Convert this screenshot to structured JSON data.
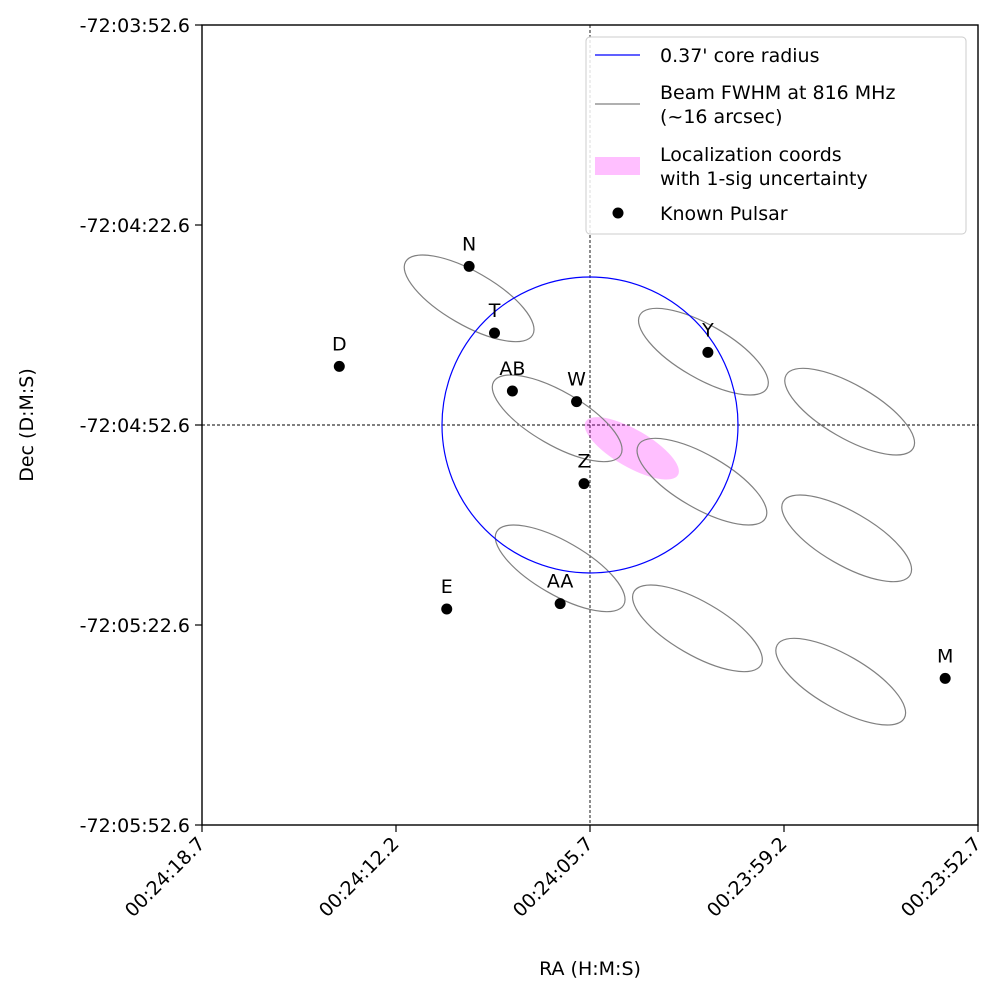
{
  "chart_data": {
    "type": "scatter",
    "xlabel": "RA (H:M:S)",
    "ylabel": "Dec (D:M:S)",
    "x_unit": "RA offset from 00:24:05.7 in seconds of time (axis inverted: RA increases to the left)",
    "y_unit": "Dec offset from -72:04:52.6 in arcseconds",
    "xlim": [
      13.0,
      -13.0
    ],
    "ylim": [
      -60,
      60
    ],
    "x_ticks": [
      {
        "value": 13.0,
        "label": "00:24:18.7"
      },
      {
        "value": 6.5,
        "label": "00:24:12.2"
      },
      {
        "value": 0.0,
        "label": "00:24:05.7"
      },
      {
        "value": -6.5,
        "label": "00:23:59.2"
      },
      {
        "value": -13.0,
        "label": "00:23:52.7"
      }
    ],
    "y_ticks": [
      {
        "value": 60,
        "label": "-72:03:52.6"
      },
      {
        "value": 30,
        "label": "-72:04:22.6"
      },
      {
        "value": 0,
        "label": "-72:04:52.6"
      },
      {
        "value": -30,
        "label": "-72:05:22.6"
      },
      {
        "value": -60,
        "label": "-72:05:52.6"
      }
    ],
    "center": {
      "x": 0,
      "y": 0
    },
    "core_circle": {
      "label": "0.37' core radius",
      "radius_arcsec": 22.2,
      "color": "#0000ff"
    },
    "beam": {
      "label": "Beam FWHM at 816 MHz\n(~16 arcsec)",
      "color": "#808080",
      "semi_major_arcsec": 11.0,
      "semi_minor_arcsec": 4.0,
      "angle_deg": 30,
      "centers": [
        {
          "x": 4.05,
          "y": 19.0
        },
        {
          "x": -3.8,
          "y": 11.0
        },
        {
          "x": -8.7,
          "y": 2.0
        },
        {
          "x": 1.1,
          "y": 1.0
        },
        {
          "x": -3.75,
          "y": -8.5
        },
        {
          "x": -8.6,
          "y": -17.0
        },
        {
          "x": 1.0,
          "y": -21.5
        },
        {
          "x": -3.6,
          "y": -30.5
        },
        {
          "x": -8.4,
          "y": -38.5
        }
      ]
    },
    "localization": {
      "label": "Localization coords\nwith 1-sig uncertainty",
      "color": "#ff00ff",
      "x": -1.4,
      "y": -3.5,
      "semi_major_arcsec": 8.0,
      "semi_minor_arcsec": 2.8,
      "angle_deg": 30
    },
    "pulsars": {
      "label": "Known Pulsar",
      "color": "#000000",
      "points": [
        {
          "name": "N",
          "x": 4.05,
          "y": 23.8
        },
        {
          "name": "T",
          "x": 3.2,
          "y": 13.8
        },
        {
          "name": "D",
          "x": 8.4,
          "y": 8.8
        },
        {
          "name": "Y",
          "x": -3.95,
          "y": 10.9
        },
        {
          "name": "AB",
          "x": 2.6,
          "y": 5.1
        },
        {
          "name": "W",
          "x": 0.45,
          "y": 3.5
        },
        {
          "name": "Z",
          "x": 0.2,
          "y": -8.8
        },
        {
          "name": "E",
          "x": 4.8,
          "y": -27.6
        },
        {
          "name": "AA",
          "x": 1.0,
          "y": -26.8
        },
        {
          "name": "M",
          "x": -11.9,
          "y": -38.0
        }
      ]
    },
    "grid": false,
    "legend": "top-right"
  }
}
